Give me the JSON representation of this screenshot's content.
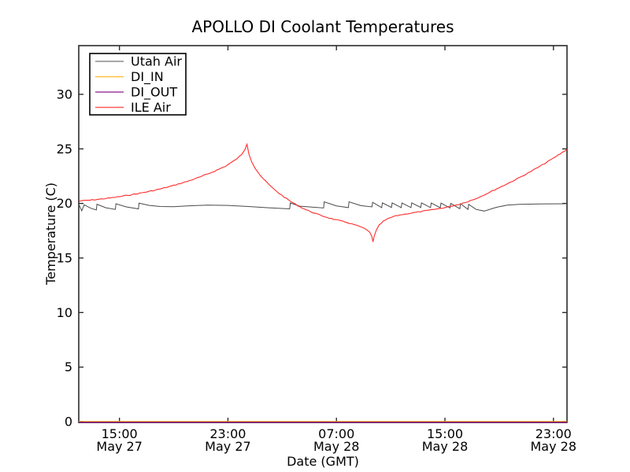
{
  "chart_data": {
    "type": "line",
    "title": "APOLLO DI Coolant Temperatures",
    "xlabel": "Date (GMT)",
    "ylabel": "Temperature (C)",
    "x_axis": {
      "description": "hours since 1200 GMT May 27",
      "range_hours": [
        0,
        36
      ],
      "ticks": [
        {
          "hour": 3,
          "time": "15:00",
          "date": "May 27"
        },
        {
          "hour": 11,
          "time": "23:00",
          "date": "May 27"
        },
        {
          "hour": 19,
          "time": "07:00",
          "date": "May 28"
        },
        {
          "hour": 27,
          "time": "15:00",
          "date": "May 28"
        },
        {
          "hour": 35,
          "time": "23:00",
          "date": "May 28"
        }
      ]
    },
    "y_axis": {
      "range": [
        0,
        34.4
      ],
      "ticks": [
        0,
        5,
        10,
        15,
        20,
        25,
        30
      ]
    },
    "legend": {
      "position": "upper left"
    },
    "grid": false,
    "series": [
      {
        "name": "Utah Air",
        "color": "#4a4a4a",
        "legend_color": "#8c8c8c",
        "width": 1.0,
        "points": [
          [
            0,
            19.93
          ],
          [
            0.22,
            19.32
          ],
          [
            0.4,
            19.88
          ],
          [
            0.9,
            19.55
          ],
          [
            1.3,
            19.4
          ],
          [
            1.34,
            19.93
          ],
          [
            2.0,
            19.6
          ],
          [
            2.7,
            19.45
          ],
          [
            2.74,
            19.97
          ],
          [
            3.5,
            19.68
          ],
          [
            4.4,
            19.5
          ],
          [
            4.44,
            20.03
          ],
          [
            5.2,
            19.82
          ],
          [
            6.0,
            19.72
          ],
          [
            7.0,
            19.7
          ],
          [
            8.0,
            19.78
          ],
          [
            9.5,
            19.85
          ],
          [
            11.0,
            19.82
          ],
          [
            12.5,
            19.72
          ],
          [
            14.0,
            19.6
          ],
          [
            15.55,
            19.5
          ],
          [
            15.6,
            20.05
          ],
          [
            16.3,
            19.75
          ],
          [
            18.05,
            19.58
          ],
          [
            18.1,
            20.15
          ],
          [
            19.0,
            19.78
          ],
          [
            19.88,
            19.62
          ],
          [
            19.93,
            20.15
          ],
          [
            20.8,
            19.8
          ],
          [
            21.62,
            19.68
          ],
          [
            21.67,
            20.1
          ],
          [
            22.34,
            19.62
          ],
          [
            22.39,
            20.05
          ],
          [
            23.06,
            19.63
          ],
          [
            23.11,
            20.05
          ],
          [
            23.78,
            19.62
          ],
          [
            23.83,
            20.04
          ],
          [
            24.5,
            19.62
          ],
          [
            24.55,
            20.05
          ],
          [
            25.22,
            19.63
          ],
          [
            25.27,
            20.05
          ],
          [
            25.94,
            19.62
          ],
          [
            25.99,
            20.04
          ],
          [
            26.66,
            19.6
          ],
          [
            26.71,
            20.03
          ],
          [
            27.38,
            19.58
          ],
          [
            27.43,
            20.0
          ],
          [
            28.1,
            19.52
          ],
          [
            28.15,
            19.97
          ],
          [
            28.7,
            19.45
          ],
          [
            28.75,
            19.92
          ],
          [
            29.3,
            19.45
          ],
          [
            29.9,
            19.3
          ],
          [
            30.8,
            19.65
          ],
          [
            31.6,
            19.85
          ],
          [
            32.5,
            19.92
          ],
          [
            34.0,
            19.95
          ],
          [
            36.0,
            19.97
          ]
        ]
      },
      {
        "name": "DI_IN",
        "color": "#ffa500",
        "legend_color": "#ffbf3f",
        "width": 1.6,
        "points": [
          [
            0,
            0
          ],
          [
            36,
            0
          ]
        ]
      },
      {
        "name": "DI_OUT",
        "color": "#800080",
        "legend_color": "#9b3f9b",
        "width": 1.6,
        "opacity": 0.8,
        "dy": 0.8,
        "points": [
          [
            0,
            0
          ],
          [
            36,
            0
          ]
        ]
      },
      {
        "name": "ILE Air",
        "color": "#ff2b2b",
        "legend_color": "#ff5a5a",
        "width": 1.1,
        "noisy": true,
        "points": [
          [
            0,
            20.22
          ],
          [
            1,
            20.32
          ],
          [
            2,
            20.45
          ],
          [
            3,
            20.62
          ],
          [
            4,
            20.82
          ],
          [
            5,
            21.05
          ],
          [
            6,
            21.32
          ],
          [
            7,
            21.65
          ],
          [
            8,
            22.02
          ],
          [
            9,
            22.45
          ],
          [
            10,
            22.95
          ],
          [
            10.8,
            23.4
          ],
          [
            11.5,
            23.95
          ],
          [
            12.0,
            24.45
          ],
          [
            12.25,
            24.95
          ],
          [
            12.4,
            25.45
          ],
          [
            12.55,
            24.55
          ],
          [
            12.75,
            23.85
          ],
          [
            13.0,
            23.25
          ],
          [
            13.4,
            22.55
          ],
          [
            13.8,
            22.0
          ],
          [
            14.3,
            21.4
          ],
          [
            14.8,
            20.9
          ],
          [
            15.3,
            20.45
          ],
          [
            15.8,
            20.05
          ],
          [
            16.3,
            19.7
          ],
          [
            16.8,
            19.4
          ],
          [
            17.3,
            19.15
          ],
          [
            17.8,
            18.92
          ],
          [
            18.3,
            18.72
          ],
          [
            18.8,
            18.55
          ],
          [
            19.3,
            18.4
          ],
          [
            19.8,
            18.25
          ],
          [
            20.3,
            18.05
          ],
          [
            20.8,
            17.85
          ],
          [
            21.2,
            17.6
          ],
          [
            21.45,
            17.35
          ],
          [
            21.6,
            17.0
          ],
          [
            21.7,
            16.5
          ],
          [
            21.78,
            16.95
          ],
          [
            21.95,
            17.55
          ],
          [
            22.15,
            18.0
          ],
          [
            22.45,
            18.35
          ],
          [
            22.8,
            18.6
          ],
          [
            23.2,
            18.8
          ],
          [
            23.7,
            18.95
          ],
          [
            24.2,
            19.05
          ],
          [
            24.7,
            19.15
          ],
          [
            25.2,
            19.25
          ],
          [
            25.7,
            19.35
          ],
          [
            26.2,
            19.45
          ],
          [
            26.7,
            19.55
          ],
          [
            27.2,
            19.68
          ],
          [
            27.7,
            19.82
          ],
          [
            28.2,
            19.98
          ],
          [
            28.7,
            20.18
          ],
          [
            29.2,
            20.4
          ],
          [
            30.0,
            20.85
          ],
          [
            31.0,
            21.45
          ],
          [
            32.0,
            22.05
          ],
          [
            33.0,
            22.7
          ],
          [
            34.0,
            23.4
          ],
          [
            35.0,
            24.15
          ],
          [
            36.0,
            24.95
          ]
        ]
      }
    ]
  }
}
